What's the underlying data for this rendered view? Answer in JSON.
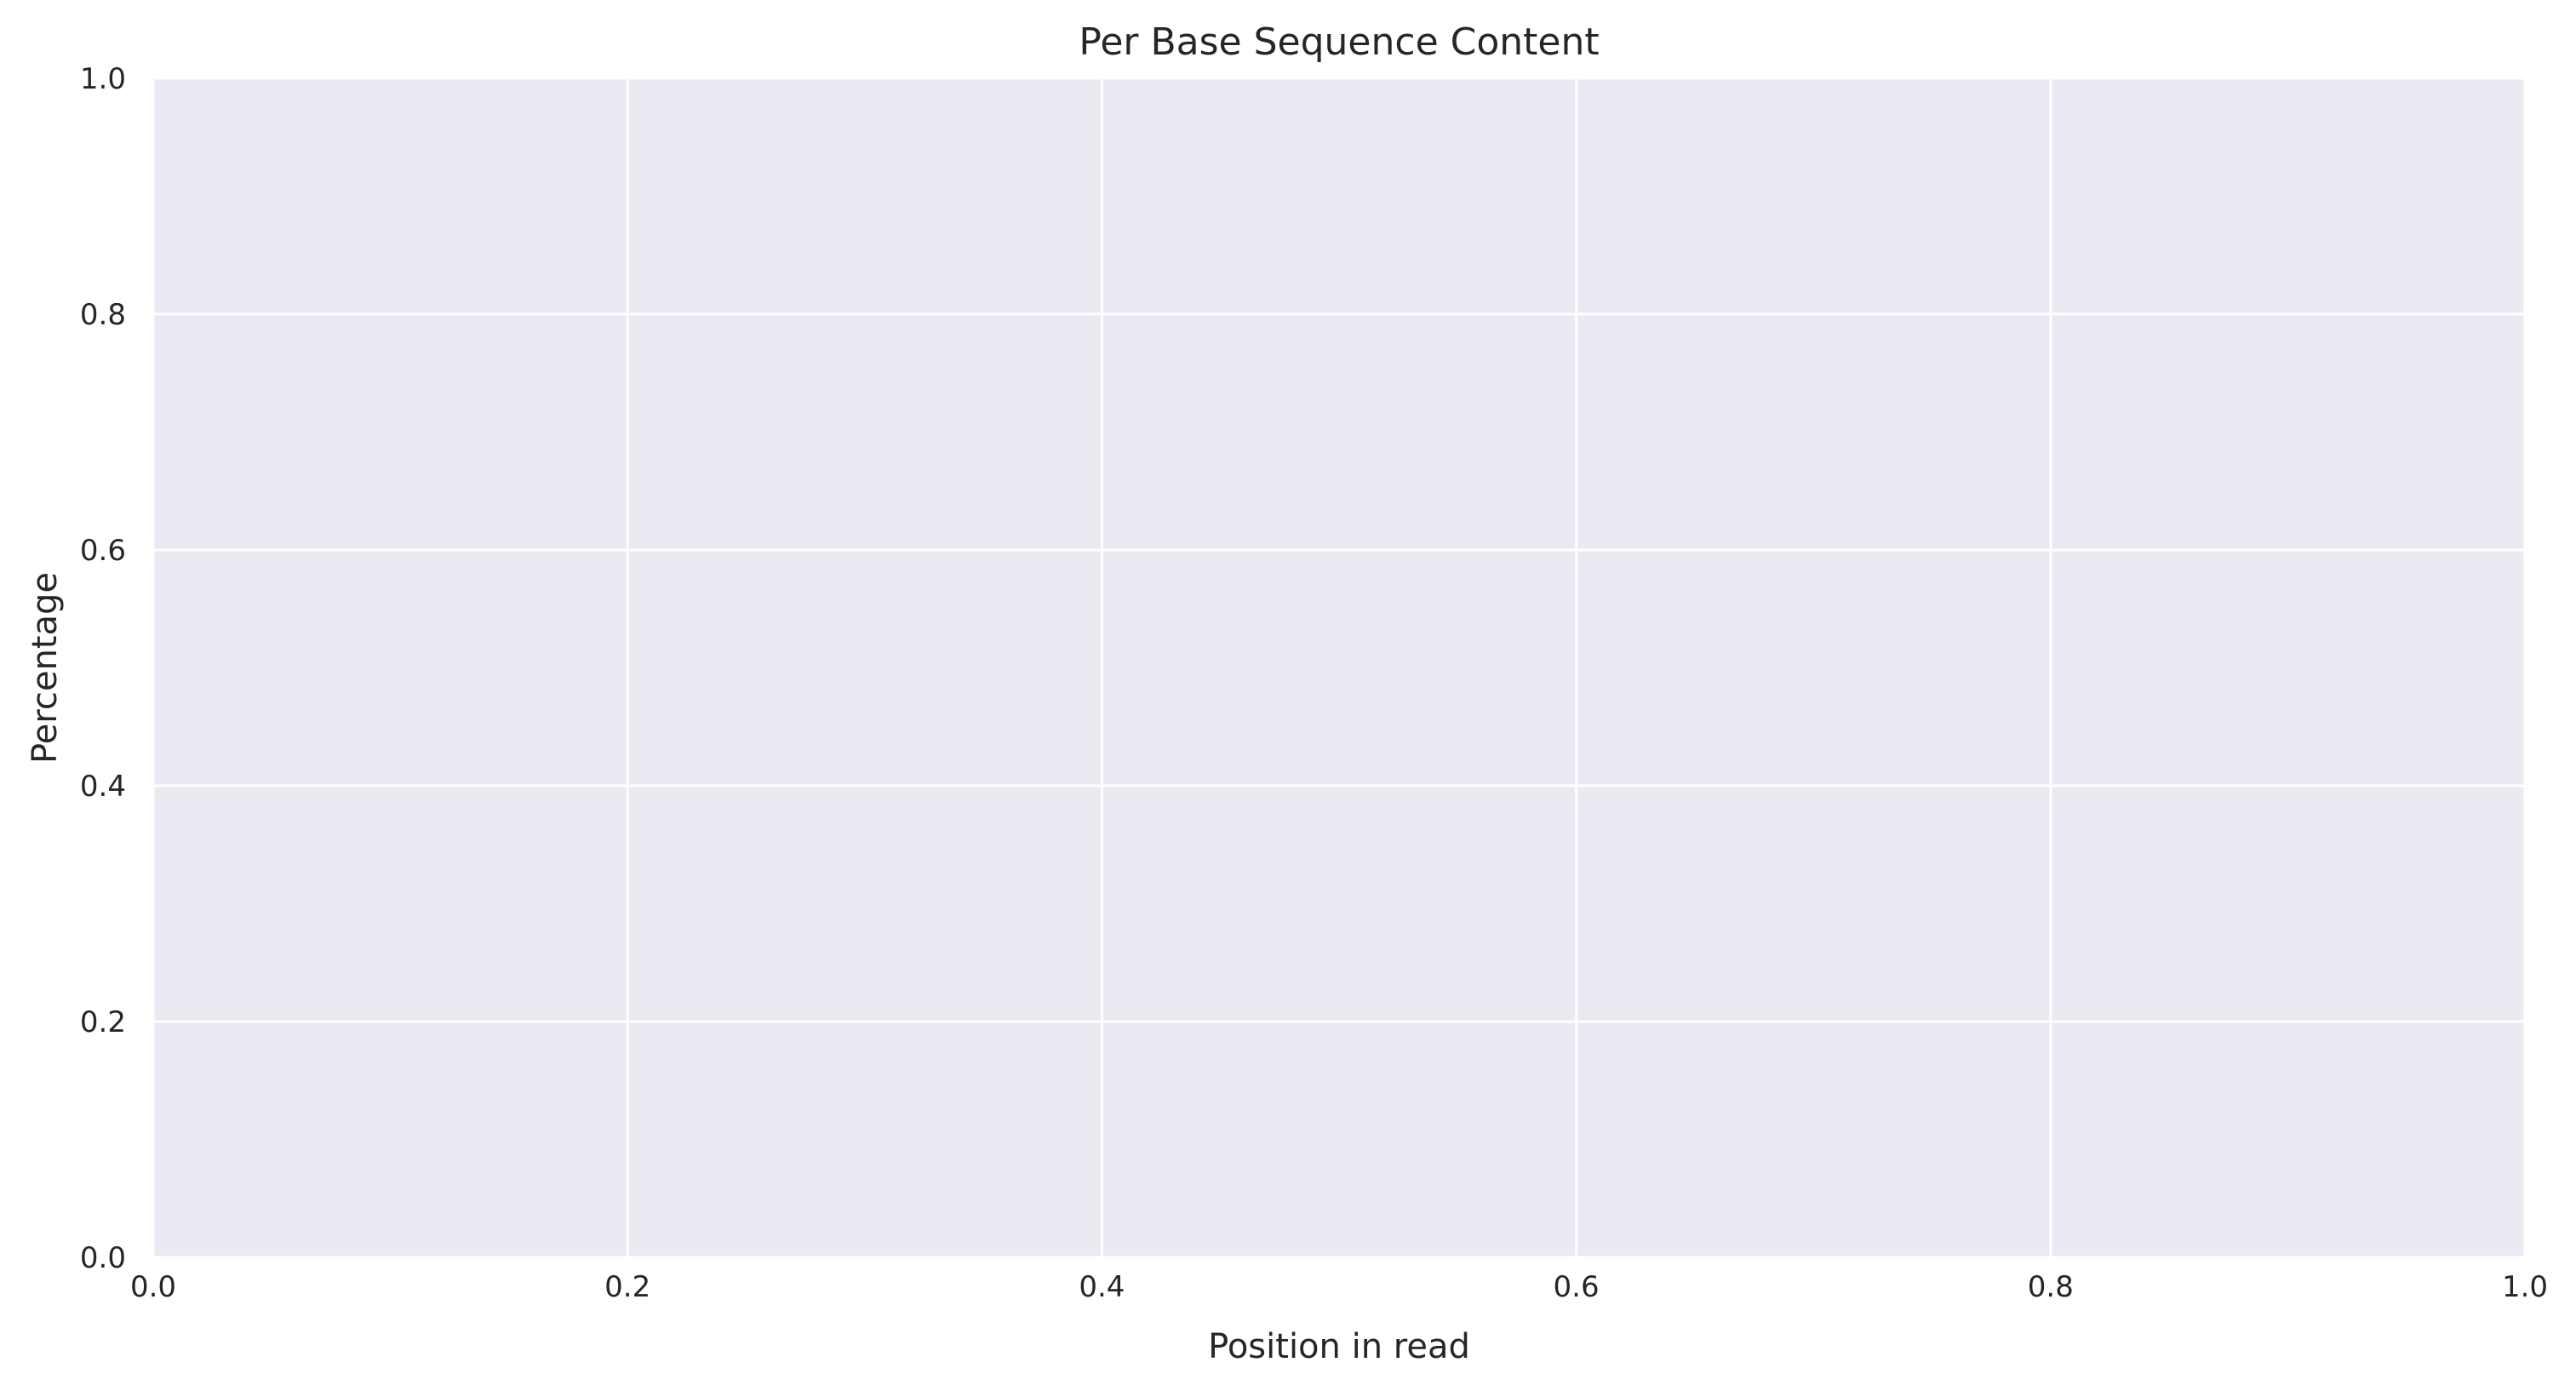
{
  "chart_data": {
    "type": "line",
    "title": "Per Base Sequence Content",
    "xlabel": "Position in read",
    "ylabel": "Percentage",
    "xlim": [
      0,
      1
    ],
    "ylim": [
      0,
      1
    ],
    "xticks": [
      0.0,
      0.2,
      0.4,
      0.6,
      0.8,
      1.0
    ],
    "yticks": [
      0.0,
      0.2,
      0.4,
      0.6,
      0.8,
      1.0
    ],
    "xtick_labels": [
      "0.0",
      "0.2",
      "0.4",
      "0.6",
      "0.8",
      "1.0"
    ],
    "ytick_labels": [
      "0.0",
      "0.2",
      "0.4",
      "0.6",
      "0.8",
      "1.0"
    ],
    "grid": true,
    "series": [],
    "colors": {
      "plot_background": "#eaeaf2",
      "grid": "#ffffff",
      "text": "#262626"
    }
  }
}
